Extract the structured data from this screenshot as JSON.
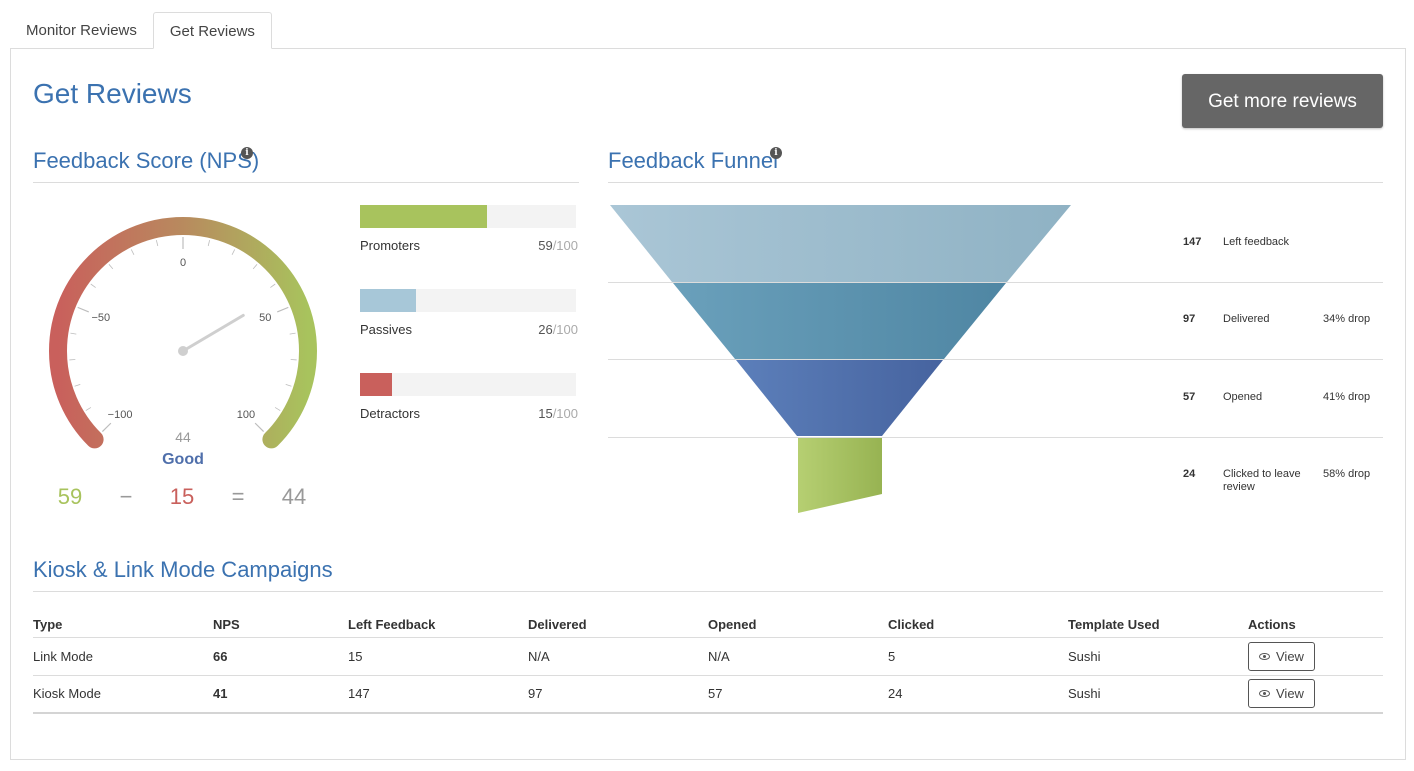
{
  "tabs": [
    {
      "label": "Monitor Reviews",
      "active": false
    },
    {
      "label": "Get Reviews",
      "active": true
    }
  ],
  "page": {
    "title": "Get Reviews",
    "cta_label": "Get more reviews"
  },
  "nps": {
    "title": "Feedback Score (NPS)",
    "info_icon": "info-icon",
    "gauge": {
      "min": -100,
      "max": 100,
      "value": 44,
      "tick_labels": [
        "−100",
        "−50",
        "0",
        "50",
        "100"
      ],
      "value_label": "44",
      "rating": "Good"
    },
    "bars": [
      {
        "label": "Promoters",
        "value": 59,
        "denominator": "/100",
        "color": "#a8c35d"
      },
      {
        "label": "Passives",
        "value": 26,
        "denominator": "/100",
        "color": "#a7c7d8"
      },
      {
        "label": "Detractors",
        "value": 15,
        "denominator": "/100",
        "color": "#c9605c"
      }
    ],
    "formula": {
      "promoters": "59",
      "minus": "−",
      "detractors": "15",
      "equals": "=",
      "result": "44",
      "promoters_color": "#a8c35d",
      "detractors_color": "#c9605c",
      "result_color": "#999999"
    }
  },
  "funnel": {
    "title": "Feedback Funnel",
    "info_icon": "info-icon",
    "stages": [
      {
        "count": "147",
        "label": "Left feedback",
        "drop": "",
        "color": "#9cbccd"
      },
      {
        "count": "97",
        "label": "Delivered",
        "drop": "34% drop",
        "color": "#5e93af"
      },
      {
        "count": "57",
        "label": "Opened",
        "drop": "41% drop",
        "color": "#4f6fab"
      },
      {
        "count": "24",
        "label": "Clicked to leave review",
        "drop": "58% drop",
        "color": "#a8c35d"
      }
    ]
  },
  "campaigns": {
    "title": "Kiosk & Link Mode Campaigns",
    "columns": [
      "Type",
      "NPS",
      "Left Feedback",
      "Delivered",
      "Opened",
      "Clicked",
      "Template Used",
      "Actions"
    ],
    "rows": [
      {
        "type": "Link Mode",
        "nps": "66",
        "left_feedback": "15",
        "delivered": "N/A",
        "opened": "N/A",
        "clicked": "5",
        "template": "Sushi",
        "action": "View"
      },
      {
        "type": "Kiosk Mode",
        "nps": "41",
        "left_feedback": "147",
        "delivered": "97",
        "opened": "57",
        "clicked": "24",
        "template": "Sushi",
        "action": "View"
      }
    ],
    "action_icon": "eye-icon"
  }
}
